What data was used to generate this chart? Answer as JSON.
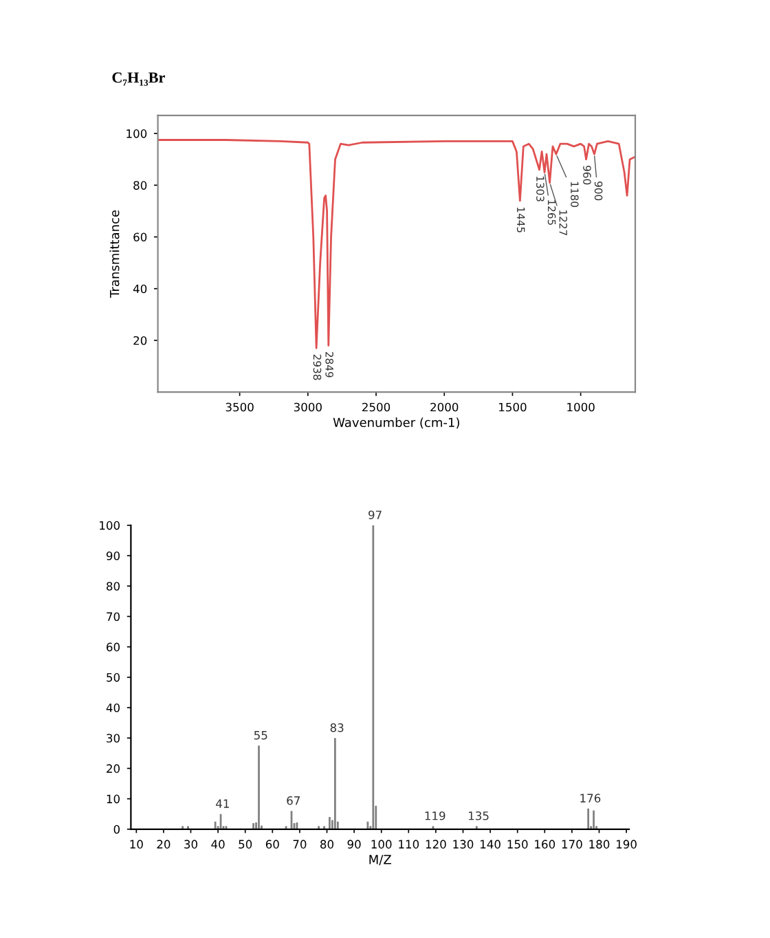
{
  "chart_data": [
    {
      "type": "line",
      "title": "C₇H₁₃Br",
      "xlabel": "Wavenumber (cm-1)",
      "ylabel": "Transmittance",
      "xlim": [
        4100,
        600
      ],
      "xticks": [
        3500,
        3000,
        2500,
        2000,
        1500,
        1000
      ],
      "ylim": [
        0,
        107
      ],
      "yticks": [
        20,
        40,
        60,
        80,
        100
      ],
      "series": [
        {
          "color": "#e05050",
          "x": [
            4100,
            3600,
            3200,
            3000,
            2990,
            2960,
            2938,
            2910,
            2880,
            2870,
            2860,
            2849,
            2830,
            2800,
            2760,
            2700,
            2600,
            2000,
            1500,
            1470,
            1445,
            1420,
            1380,
            1350,
            1303,
            1285,
            1265,
            1250,
            1227,
            1205,
            1180,
            1150,
            1100,
            1050,
            1000,
            975,
            960,
            940,
            920,
            900,
            880,
            800,
            720,
            680,
            660,
            640,
            600
          ],
          "values": [
            97.5,
            97.5,
            97,
            96.5,
            96,
            60,
            17,
            50,
            75,
            76,
            70,
            18,
            60,
            90,
            96,
            95.5,
            96.5,
            97,
            97,
            93,
            74,
            95,
            96,
            94,
            86,
            93,
            85,
            92,
            81,
            95,
            92,
            96,
            96,
            95,
            96,
            95,
            90,
            96,
            95,
            92,
            96,
            97,
            96,
            85,
            76,
            90,
            91
          ]
        }
      ],
      "annotations": [
        {
          "text": "2938",
          "x": 2938,
          "y": 17
        },
        {
          "text": "2849",
          "x": 2849,
          "y": 18
        },
        {
          "text": "1445",
          "x": 1445,
          "y": 74
        },
        {
          "text": "1303",
          "x": 1303,
          "y": 86
        },
        {
          "text": "1265",
          "x": 1265,
          "y": 85
        },
        {
          "text": "1227",
          "x": 1227,
          "y": 81
        },
        {
          "text": "1180",
          "x": 1180,
          "y": 92
        },
        {
          "text": "960",
          "x": 960,
          "y": 90
        },
        {
          "text": "900",
          "x": 900,
          "y": 92
        }
      ]
    },
    {
      "type": "bar",
      "xlabel": "M/Z",
      "xlim": [
        8,
        191
      ],
      "xticks": [
        10,
        20,
        30,
        40,
        50,
        60,
        70,
        80,
        90,
        100,
        110,
        120,
        130,
        140,
        150,
        160,
        170,
        180,
        190
      ],
      "ylim": [
        0,
        100
      ],
      "yticks": [
        0,
        10,
        20,
        30,
        40,
        50,
        60,
        70,
        80,
        90,
        100
      ],
      "x": [
        27,
        29,
        39,
        40,
        41,
        42,
        43,
        53,
        54,
        55,
        56,
        65,
        67,
        68,
        69,
        77,
        79,
        81,
        82,
        83,
        84,
        95,
        96,
        97,
        98,
        119,
        135,
        176,
        177,
        178,
        179
      ],
      "series": [
        {
          "color": "#808080",
          "values": [
            1,
            1,
            2.5,
            1,
            5,
            1,
            1,
            2,
            2.2,
            27.5,
            1.2,
            1,
            6,
            2,
            2.2,
            1,
            1,
            4,
            3,
            30,
            2.5,
            2.5,
            1,
            100,
            7.7,
            1,
            1,
            6.8,
            1,
            6.2,
            1
          ]
        }
      ],
      "annotations": [
        {
          "text": "41",
          "x": 41,
          "y": 5
        },
        {
          "text": "55",
          "x": 55,
          "y": 27.5
        },
        {
          "text": "67",
          "x": 67,
          "y": 6
        },
        {
          "text": "83",
          "x": 83,
          "y": 30
        },
        {
          "text": "97",
          "x": 97,
          "y": 100
        },
        {
          "text": "119",
          "x": 119,
          "y": 1
        },
        {
          "text": "135",
          "x": 135,
          "y": 1
        },
        {
          "text": "176",
          "x": 176,
          "y": 6.8
        }
      ]
    }
  ]
}
